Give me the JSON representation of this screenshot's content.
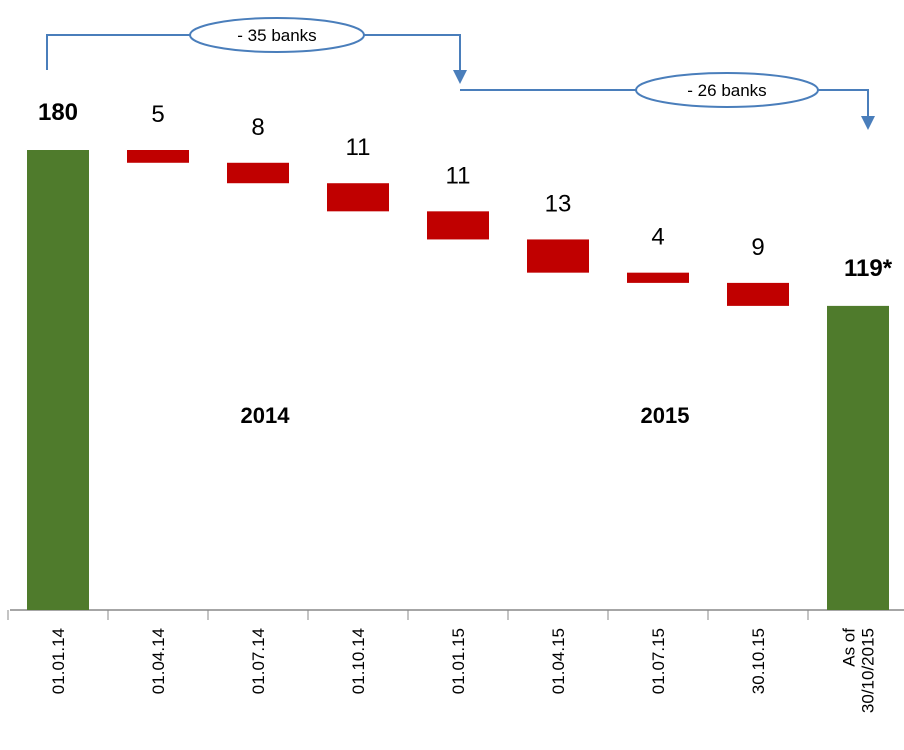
{
  "chart_data": {
    "type": "waterfall",
    "categories": [
      "01.01.14",
      "01.04.14",
      "01.07.14",
      "01.10.14",
      "01.01.15",
      "01.04.15",
      "01.07.15",
      "30.10.15",
      "As of\n30/10/2015"
    ],
    "values": [
      180,
      5,
      8,
      11,
      11,
      13,
      4,
      9,
      119
    ],
    "value_labels": [
      "180",
      "5",
      "8",
      "11",
      "11",
      "13",
      "4",
      "9",
      "119*"
    ],
    "kinds": [
      "total",
      "decrease",
      "decrease",
      "decrease",
      "decrease",
      "decrease",
      "decrease",
      "decrease",
      "total"
    ],
    "total_color": "#4f7b2c",
    "decrease_color": "#c00000",
    "annotations": {
      "bracket_2014": "- 35 banks",
      "bracket_2015": "- 26 banks",
      "year_2014": "2014",
      "year_2015": "2015"
    }
  }
}
